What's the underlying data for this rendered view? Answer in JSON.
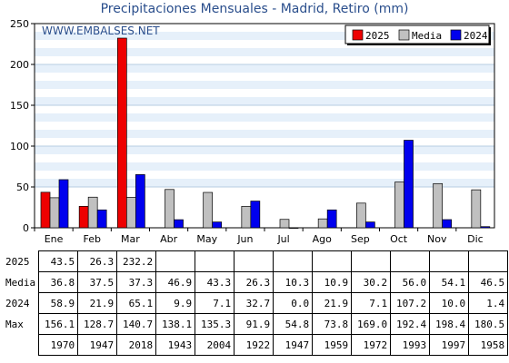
{
  "title": "Precipitaciones Mensuales - Madrid, Retiro (mm)",
  "watermark": "WWW.EMBALSES.NET",
  "colors": {
    "s2025": "#ee0000",
    "media": "#c0c0c0",
    "s2024": "#0000ee",
    "title": "#2a4e8c",
    "watermark": "#2a4e8c",
    "band": "#e6f0fa"
  },
  "chart_data": {
    "type": "bar",
    "title": "Precipitaciones Mensuales - Madrid, Retiro (mm)",
    "categories": [
      "Ene",
      "Feb",
      "Mar",
      "Abr",
      "May",
      "Jun",
      "Jul",
      "Ago",
      "Sep",
      "Oct",
      "Nov",
      "Dic"
    ],
    "ylim": [
      0,
      250
    ],
    "yticks": [
      0,
      50,
      100,
      150,
      200,
      250
    ],
    "legend_position": "top-right",
    "series": [
      {
        "name": "2025",
        "values": [
          43.5,
          26.3,
          232.2,
          null,
          null,
          null,
          null,
          null,
          null,
          null,
          null,
          null
        ]
      },
      {
        "name": "Media",
        "values": [
          36.8,
          37.5,
          37.3,
          46.9,
          43.3,
          26.3,
          10.3,
          10.9,
          30.2,
          56.0,
          54.1,
          46.5
        ]
      },
      {
        "name": "2024",
        "values": [
          58.9,
          21.9,
          65.1,
          9.9,
          7.1,
          32.7,
          0.0,
          21.9,
          7.1,
          107.2,
          10.0,
          1.4
        ]
      }
    ]
  },
  "table": {
    "rows": [
      {
        "label": "2025",
        "values": [
          "43.5",
          "26.3",
          "232.2",
          "",
          "",
          "",
          "",
          "",
          "",
          "",
          "",
          ""
        ]
      },
      {
        "label": "Media",
        "values": [
          "36.8",
          "37.5",
          "37.3",
          "46.9",
          "43.3",
          "26.3",
          "10.3",
          "10.9",
          "30.2",
          "56.0",
          "54.1",
          "46.5"
        ]
      },
      {
        "label": "2024",
        "values": [
          "58.9",
          "21.9",
          "65.1",
          "9.9",
          "7.1",
          "32.7",
          "0.0",
          "21.9",
          "7.1",
          "107.2",
          "10.0",
          "1.4"
        ]
      },
      {
        "label": "Max",
        "values": [
          "156.1",
          "128.7",
          "140.7",
          "138.1",
          "135.3",
          "91.9",
          "54.8",
          "73.8",
          "169.0",
          "192.4",
          "198.4",
          "180.5"
        ]
      },
      {
        "label": "",
        "values": [
          "1970",
          "1947",
          "2018",
          "1943",
          "2004",
          "1922",
          "1947",
          "1959",
          "1972",
          "1993",
          "1997",
          "1958"
        ]
      }
    ]
  }
}
